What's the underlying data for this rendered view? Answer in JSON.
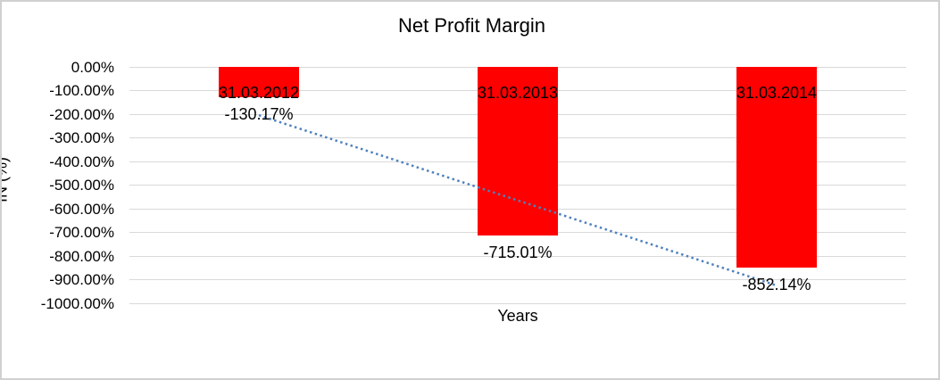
{
  "chart_data": {
    "type": "bar",
    "title": "Net Profit Margin",
    "xlabel": "Years",
    "ylabel": "IN (%)",
    "categories": [
      "31.03.2012",
      "31.03.2013",
      "31.03.2014"
    ],
    "series": [
      {
        "name": "Net Profit Margin",
        "values": [
          -130.17,
          -715.01,
          -852.14
        ]
      }
    ],
    "data_labels": [
      "-130.17%",
      "-715.01%",
      "-852.14%"
    ],
    "y_ticks": [
      {
        "label": "0.00%",
        "value": 0
      },
      {
        "label": "-100.00%",
        "value": -100
      },
      {
        "label": "-200.00%",
        "value": -200
      },
      {
        "label": "-300.00%",
        "value": -300
      },
      {
        "label": "-400.00%",
        "value": -400
      },
      {
        "label": "-500.00%",
        "value": -500
      },
      {
        "label": "-600.00%",
        "value": -600
      },
      {
        "label": "-700.00%",
        "value": -700
      },
      {
        "label": "-800.00%",
        "value": -800
      },
      {
        "label": "-900.00%",
        "value": -900
      },
      {
        "label": "-1000.00%",
        "value": -1000
      }
    ],
    "ylim": [
      -1000,
      0
    ],
    "grid": true,
    "legend": false,
    "bar_color": "#ff0000",
    "gridline_color": "#d9d9d9",
    "trendline": {
      "type": "linear",
      "style": "dotted",
      "color": "#4f81bd"
    }
  }
}
